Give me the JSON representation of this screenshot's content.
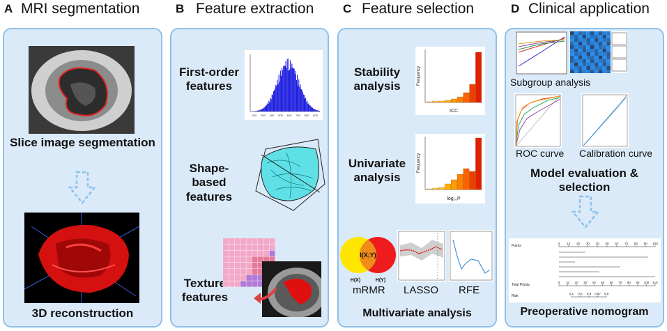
{
  "panels": [
    {
      "letter": "A",
      "title": "MRI segmentation"
    },
    {
      "letter": "B",
      "title": "Feature extraction"
    },
    {
      "letter": "C",
      "title": "Feature selection"
    },
    {
      "letter": "D",
      "title": "Clinical application"
    }
  ],
  "a": {
    "slice_label": "Slice image segmentation",
    "recon_label": "3D reconstruction"
  },
  "b": {
    "first_order": "First-order features",
    "shape_based": "Shape-based features",
    "texture": "Texture features",
    "hist_ticks": [
      "200",
      "300",
      "400",
      "500",
      "600",
      "700",
      "800",
      "900"
    ]
  },
  "c": {
    "stability": "Stability analysis",
    "univariate": "Univariate analysis",
    "freq": "Frequency",
    "icc": "ICC",
    "logp": "log₁₀P",
    "mrmr": "mRMR",
    "lasso": "LASSO",
    "rfe": "RFE",
    "venn_center": "I(X;Y)",
    "hx": "H(X)",
    "hy": "H(Y)",
    "multivariate": "Multivariate analysis"
  },
  "d": {
    "subgroup": "Subgroup analysis",
    "roc": "ROC curve",
    "calibration": "Calibration curve",
    "model": "Model evaluation & selection",
    "nomogram": "Preoperative nomogram",
    "nomo_rows": [
      "Points",
      "Total Points",
      "Risk"
    ],
    "points_ticks": [
      "0",
      "10",
      "20",
      "30",
      "40",
      "50",
      "60",
      "70",
      "80",
      "90",
      "100"
    ],
    "total_ticks": [
      "0",
      "10",
      "20",
      "30",
      "40",
      "50",
      "60",
      "70",
      "80",
      "90",
      "100",
      "110"
    ],
    "risk_ticks": [
      "0.1",
      "0.6",
      "0.8",
      "0.87",
      "0.9"
    ]
  },
  "colors": {
    "panel_bg": "#dbeaf8",
    "panel_border": "#8ec0e8",
    "arrow": "#8ec0e8"
  }
}
